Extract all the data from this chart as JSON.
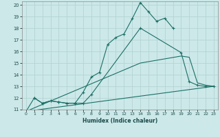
{
  "title": "",
  "xlabel": "Humidex (Indice chaleur)",
  "bg_color": "#cce8e8",
  "grid_color": "#b0d0d0",
  "line_color": "#1a6e65",
  "xlim": [
    -0.5,
    23.5
  ],
  "ylim": [
    11,
    20.3
  ],
  "yticks": [
    11,
    12,
    13,
    14,
    15,
    16,
    17,
    18,
    19,
    20
  ],
  "xticks": [
    0,
    1,
    2,
    3,
    4,
    5,
    6,
    7,
    8,
    9,
    10,
    11,
    12,
    13,
    14,
    15,
    16,
    17,
    18,
    19,
    20,
    21,
    22,
    23
  ],
  "line1_x": [
    0,
    1,
    2,
    3,
    4,
    5,
    6,
    7,
    8,
    9,
    10,
    11,
    12,
    13,
    14,
    15,
    16,
    17,
    18
  ],
  "line1_y": [
    10.85,
    12.0,
    11.55,
    11.75,
    11.65,
    11.55,
    11.55,
    12.5,
    13.8,
    14.2,
    16.6,
    17.2,
    17.5,
    18.8,
    20.2,
    19.4,
    18.6,
    18.85,
    18.0
  ],
  "line2_x": [
    1,
    2,
    3,
    4,
    5,
    6,
    7,
    8,
    14,
    19,
    20,
    21,
    22,
    23
  ],
  "line2_y": [
    12.0,
    11.55,
    11.75,
    11.65,
    11.55,
    11.55,
    11.55,
    12.3,
    18.0,
    15.9,
    13.4,
    13.1,
    13.0,
    13.0
  ],
  "line3_x": [
    0,
    23
  ],
  "line3_y": [
    10.85,
    13.0
  ],
  "line4_x": [
    0,
    14,
    19,
    20,
    21,
    22,
    23
  ],
  "line4_y": [
    10.85,
    15.0,
    15.6,
    15.5,
    13.3,
    13.1,
    13.0
  ]
}
